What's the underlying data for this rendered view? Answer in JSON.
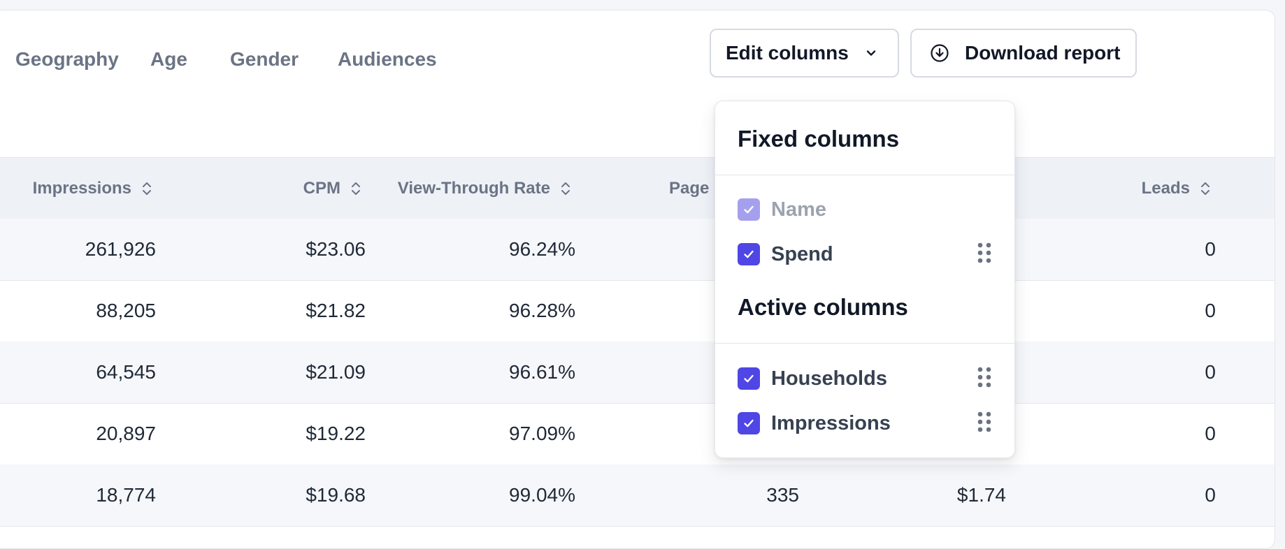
{
  "tabs": [
    "Geography",
    "Age",
    "Gender",
    "Audiences"
  ],
  "toolbar": {
    "edit_columns_label": "Edit columns",
    "download_label": "Download report"
  },
  "table": {
    "headers": {
      "impressions": "Impressions",
      "cpm": "CPM",
      "vtr": "View-Through Rate",
      "page": "Page",
      "leads": "Leads"
    },
    "rows": [
      {
        "impressions": "261,926",
        "cpm": "$23.06",
        "vtr": "96.24%",
        "page": "",
        "col5": "",
        "leads": "0"
      },
      {
        "impressions": "88,205",
        "cpm": "$21.82",
        "vtr": "96.28%",
        "page": "",
        "col5": "",
        "leads": "0"
      },
      {
        "impressions": "64,545",
        "cpm": "$21.09",
        "vtr": "96.61%",
        "page": "",
        "col5": "",
        "leads": "0"
      },
      {
        "impressions": "20,897",
        "cpm": "$19.22",
        "vtr": "97.09%",
        "page": "",
        "col5": "",
        "leads": "0"
      },
      {
        "impressions": "18,774",
        "cpm": "$19.68",
        "vtr": "99.04%",
        "page": "335",
        "col5": "$1.74",
        "leads": "0"
      }
    ]
  },
  "column_menu": {
    "fixed_heading": "Fixed columns",
    "fixed_items": [
      {
        "label": "Name",
        "checked": true,
        "disabled": true
      },
      {
        "label": "Spend",
        "checked": true,
        "disabled": false
      }
    ],
    "active_heading": "Active columns",
    "active_items": [
      {
        "label": "Households",
        "checked": true
      },
      {
        "label": "Impressions",
        "checked": true
      }
    ]
  },
  "colors": {
    "accent": "#4f46e5",
    "accent_disabled": "#a5a0ee",
    "header_bg": "#eef1f6",
    "muted_text": "#6b7485"
  },
  "icons": {
    "sort": "sort-updown-icon",
    "chevron": "chevron-down-icon",
    "download": "download-circle-icon",
    "check": "check-icon",
    "grip": "drag-handle-icon"
  }
}
